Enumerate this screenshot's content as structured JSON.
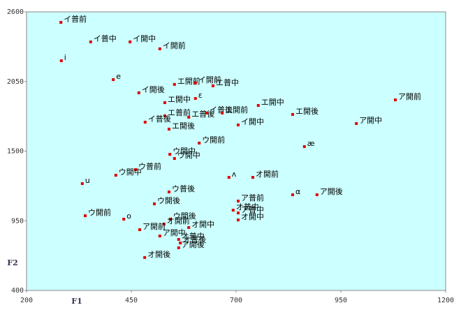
{
  "chart_data": {
    "type": "scatter",
    "xlabel": "F1",
    "ylabel": "F2",
    "color": "#e00000",
    "background": "#ccffff",
    "xlim": [
      200,
      1200
    ],
    "ylim": [
      400,
      2600
    ],
    "xticks": [
      200,
      450,
      700,
      950,
      1200
    ],
    "yticks": [
      400,
      950,
      1500,
      2050,
      2600
    ],
    "labels": [
      "イ普前",
      "イ普中",
      "イ開中",
      "イ開前",
      "i",
      "e",
      "イ開後",
      "エ開前",
      "イ開前",
      "エ普中",
      "ε",
      "エ開中",
      "エ開中",
      "エ普前",
      "エ普後",
      "イ普後",
      "エ開前",
      "エ開後",
      "イ普後",
      "エ開後",
      "イ開中",
      "ア開前",
      "ア開中",
      "ウ開前",
      "æ",
      "ウ開中",
      "ウ開中",
      "ウ普前",
      "ウ開中",
      "ʌ",
      "オ開前",
      "u",
      "ウ普後",
      "α",
      "ア開後",
      "ウ開後",
      "ア普前",
      "オ普中",
      "ア普中",
      "オ開中",
      "ウ開前",
      "o",
      "ウ開後",
      "オ開前",
      "オ開中",
      "ア開前",
      "ア開中",
      "オ普中",
      "オ普後",
      "ア開後",
      "オ開後"
    ],
    "x": [
      282,
      353,
      447,
      518,
      283,
      407,
      468,
      553,
      603,
      645,
      603,
      530,
      753,
      530,
      587,
      630,
      667,
      835,
      483,
      540,
      705,
      1080,
      987,
      612,
      863,
      542,
      553,
      460,
      413,
      683,
      740,
      333,
      540,
      835,
      893,
      505,
      705,
      693,
      705,
      705,
      340,
      432,
      543,
      528,
      587,
      470,
      518,
      563,
      567,
      563,
      482
    ],
    "values": [
      2517,
      2363,
      2363,
      2308,
      2214,
      2065,
      1961,
      2027,
      2038,
      2016,
      1916,
      1883,
      1861,
      1779,
      1768,
      1801,
      1801,
      1790,
      1729,
      1674,
      1707,
      1905,
      1718,
      1564,
      1536,
      1475,
      1442,
      1354,
      1310,
      1293,
      1293,
      1244,
      1178,
      1156,
      1156,
      1084,
      1106,
      1034,
      1012,
      957,
      990,
      963,
      963,
      924,
      897,
      880,
      830,
      803,
      775,
      737,
      660
    ]
  }
}
